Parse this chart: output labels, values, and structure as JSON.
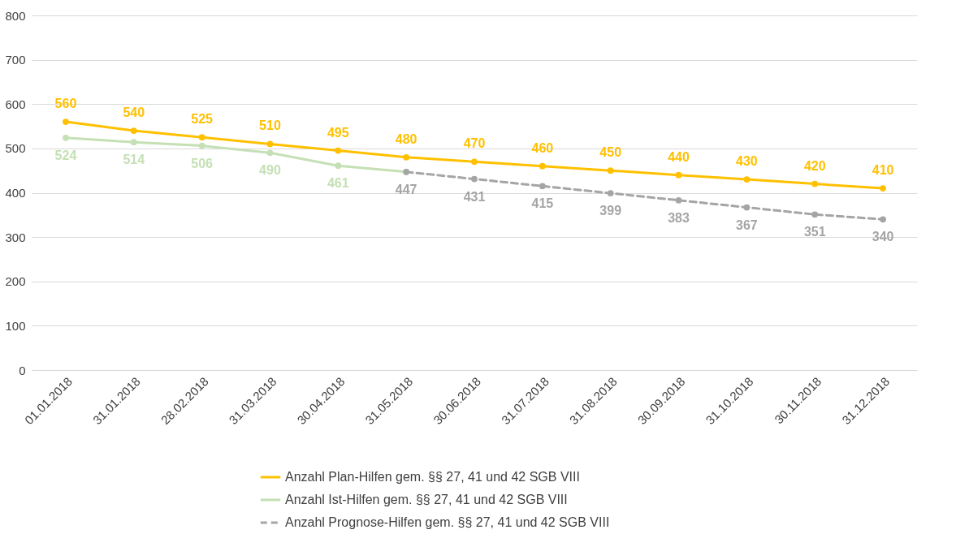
{
  "chart_data": {
    "type": "line",
    "categories": [
      "01.01.2018",
      "31.01.2018",
      "28.02.2018",
      "31.03.2018",
      "30.04.2018",
      "31.05.2018",
      "30.06.2018",
      "31.07.2018",
      "31.08.2018",
      "30.09.2018",
      "31.10.2018",
      "30.11.2018",
      "31.12.2018"
    ],
    "series": [
      {
        "name": "Anzahl Plan-Hilfen gem.  §§ 27, 41 und 42 SGB VIII",
        "color": "#ffc000",
        "line_style": "solid",
        "values": [
          560,
          540,
          525,
          510,
          495,
          480,
          470,
          460,
          450,
          440,
          430,
          420,
          410
        ],
        "value_labels": [
          "560",
          "540",
          "525",
          "510",
          "495",
          "480",
          "470",
          "460",
          "450",
          "440",
          "430",
          "420",
          "410"
        ]
      },
      {
        "name": "Anzahl Ist-Hilfen gem.  §§ 27, 41 und 42 SGB VIII",
        "color": "#c5e0b4",
        "line_style": "solid",
        "values": [
          524,
          514,
          506,
          490,
          461,
          447,
          null,
          null,
          null,
          null,
          null,
          null,
          null
        ],
        "value_labels": [
          "524",
          "514",
          "506",
          "490",
          "461",
          null,
          null,
          null,
          null,
          null,
          null,
          null,
          null
        ]
      },
      {
        "name": "Anzahl Prognose-Hilfen gem.  §§ 27, 41 und 42 SGB VIII",
        "color": "#a5a5a5",
        "line_style": "dashed",
        "values": [
          null,
          null,
          null,
          null,
          null,
          447,
          431,
          415,
          399,
          383,
          367,
          351,
          340
        ],
        "value_labels": [
          null,
          null,
          null,
          null,
          null,
          "447",
          "431",
          "415",
          "399",
          "383",
          "367",
          "351",
          "340"
        ]
      }
    ],
    "ylim": [
      0,
      800
    ],
    "yticks": [
      0,
      100,
      200,
      300,
      400,
      500,
      600,
      700,
      800
    ],
    "grid": "y",
    "legend": "bottom",
    "marker": "circle"
  }
}
